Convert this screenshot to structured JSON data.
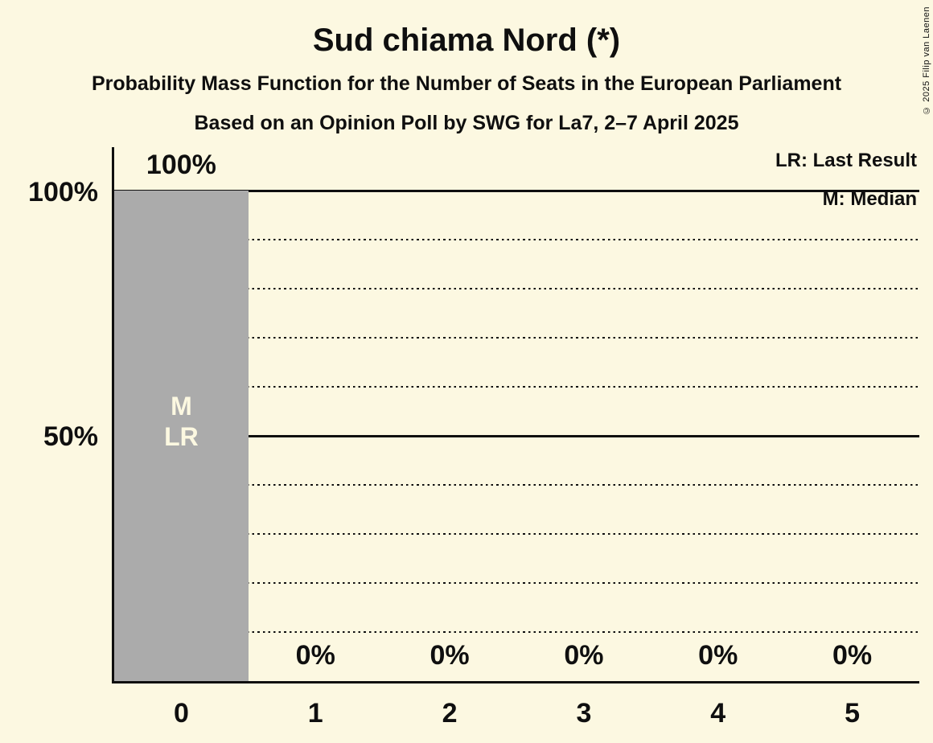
{
  "page": {
    "background_color": "#fcf8e1",
    "text_color": "#0f0f0f"
  },
  "header": {
    "title": "Sud chiama Nord (*)",
    "subtitle": "Probability Mass Function for the Number of Seats in the European Parliament",
    "source_line": "Based on an Opinion Poll by SWG for La7, 2–7 April 2025",
    "copyright": "© 2025 Filip van Laenen"
  },
  "legend": {
    "last_result": "LR: Last Result",
    "median": "M: Median"
  },
  "chart_data": {
    "type": "bar",
    "title": "Sud chiama Nord (*)",
    "xlabel": "",
    "ylabel": "",
    "categories": [
      "0",
      "1",
      "2",
      "3",
      "4",
      "5"
    ],
    "values": [
      100,
      0,
      0,
      0,
      0,
      0
    ],
    "value_labels": [
      "100%",
      "0%",
      "0%",
      "0%",
      "0%",
      "0%"
    ],
    "bar_annotations": [
      [
        "M",
        "LR"
      ],
      [],
      [],
      [],
      [],
      []
    ],
    "ylim": [
      0,
      100
    ],
    "ytick_values": [
      100,
      50
    ],
    "ytick_labels": [
      "100%",
      "50%"
    ],
    "solid_gridlines": [
      100,
      50
    ],
    "dotted_gridlines": [
      90,
      80,
      70,
      60,
      40,
      30,
      20,
      10
    ],
    "grid": "horizontal",
    "legend_position": "top-right",
    "bar_color": "#ababab",
    "bar_annotation_color": "#fcf8e1",
    "line_color": "#0f0f0f"
  }
}
